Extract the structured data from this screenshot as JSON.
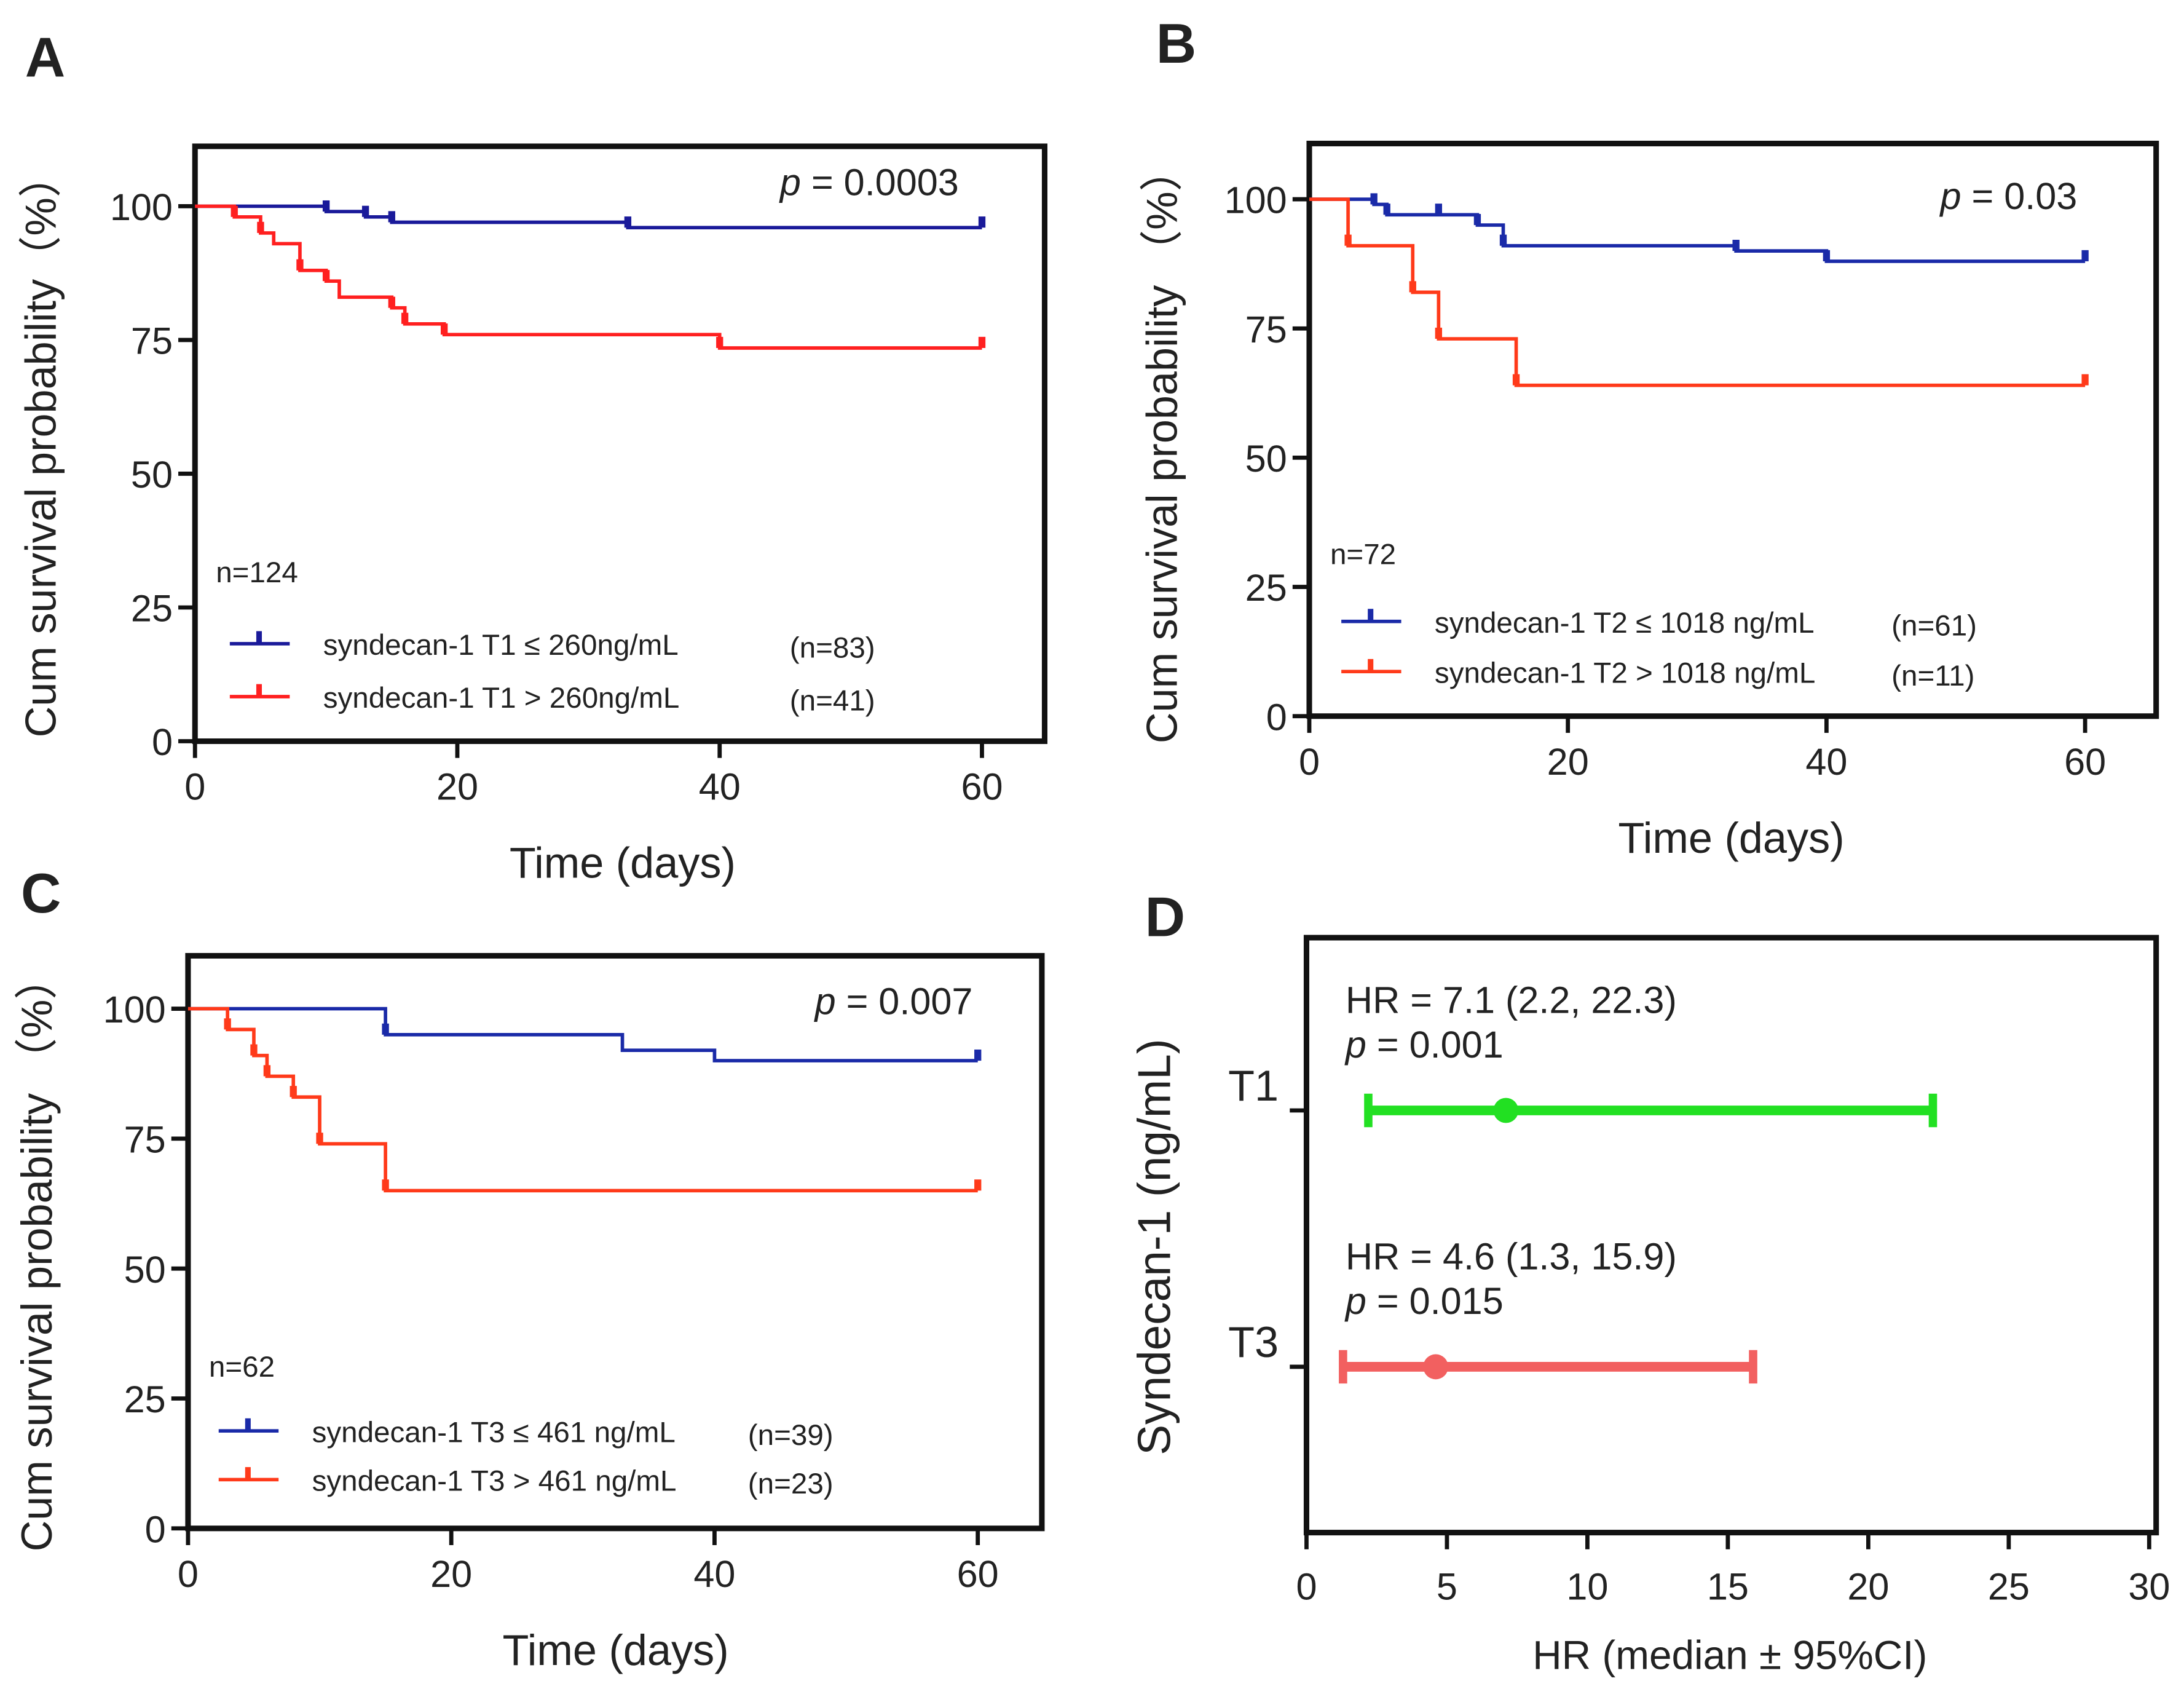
{
  "chart_data": [
    {
      "panel": "A",
      "type": "line",
      "xlabel": "Time (days)",
      "ylabel": "Cum survival probability（%）",
      "xlim": [
        0,
        65
      ],
      "ylim": [
        0,
        110
      ],
      "xticks": [
        0,
        20,
        40,
        60
      ],
      "yticks": [
        0,
        25,
        50,
        75,
        100
      ],
      "annotation_p": "= 0.0003",
      "n_label": "n=124",
      "series": [
        {
          "name": "syndecan-1 T1 ≤ 260ng/mL",
          "n": "(n=83)",
          "color": "#1a1a9a",
          "steps": [
            [
              0,
              100
            ],
            [
              10,
              99
            ],
            [
              13,
              98
            ],
            [
              15,
              97
            ],
            [
              33,
              96
            ],
            [
              60,
              96
            ]
          ],
          "censored": [
            10,
            13,
            15,
            33,
            60
          ]
        },
        {
          "name": "syndecan-1 T1 > 260ng/mL",
          "n": "(n=41)",
          "color": "#ff2020",
          "steps": [
            [
              0,
              100
            ],
            [
              3,
              98
            ],
            [
              5,
              95
            ],
            [
              6,
              93
            ],
            [
              8,
              88
            ],
            [
              10,
              86
            ],
            [
              11,
              83
            ],
            [
              15,
              81
            ],
            [
              16,
              78
            ],
            [
              19,
              76
            ],
            [
              40,
              73.5
            ],
            [
              60,
              73.5
            ]
          ],
          "censored": [
            3,
            5,
            8,
            10,
            15,
            16,
            19,
            40,
            60
          ]
        }
      ]
    },
    {
      "panel": "B",
      "type": "line",
      "xlabel": "Time (days)",
      "ylabel": "Cum survival probability （%）",
      "xlim": [
        0,
        62
      ],
      "ylim": [
        0,
        110
      ],
      "xticks": [
        0,
        20,
        40,
        60
      ],
      "yticks": [
        0,
        25,
        50,
        75,
        100
      ],
      "annotation_p": "= 0.03",
      "n_label": "n=72",
      "series": [
        {
          "name": "syndecan-1 T2 ≤ 1018 ng/mL",
          "n": "(n=61)",
          "color": "#1a2aa8",
          "steps": [
            [
              0,
              100
            ],
            [
              5,
              99
            ],
            [
              6,
              97
            ],
            [
              10,
              97
            ],
            [
              13,
              95
            ],
            [
              15,
              91
            ],
            [
              33,
              90
            ],
            [
              40,
              88
            ],
            [
              60,
              88
            ]
          ],
          "censored": [
            5,
            6,
            10,
            13,
            15,
            33,
            40,
            60
          ]
        },
        {
          "name": "syndecan-1 T2 > 1018 ng/mL",
          "n": "(n=11)",
          "color": "#ff3a1a",
          "steps": [
            [
              0,
              100
            ],
            [
              3,
              91
            ],
            [
              8,
              82
            ],
            [
              10,
              73
            ],
            [
              16,
              64
            ],
            [
              60,
              64
            ]
          ],
          "censored": [
            3,
            8,
            10,
            16,
            60
          ]
        }
      ]
    },
    {
      "panel": "C",
      "type": "line",
      "xlabel": "Time (days)",
      "ylabel": "Cum survival probability （%）",
      "xlim": [
        0,
        65
      ],
      "ylim": [
        0,
        110
      ],
      "xticks": [
        0,
        20,
        40,
        60
      ],
      "yticks": [
        0,
        25,
        50,
        75,
        100
      ],
      "annotation_p": "= 0.007",
      "n_label": "n=62",
      "series": [
        {
          "name": "syndecan-1 T3 ≤ 461 ng/mL",
          "n": "(n=39)",
          "color": "#1a2aa8",
          "steps": [
            [
              0,
              100
            ],
            [
              15,
              95
            ],
            [
              33,
              92
            ],
            [
              40,
              90
            ],
            [
              60,
              90
            ]
          ],
          "censored": [
            15,
            60
          ]
        },
        {
          "name": "syndecan-1 T3 > 461 ng/mL",
          "n": "(n=23)",
          "color": "#ff3a1a",
          "steps": [
            [
              0,
              100
            ],
            [
              3,
              96
            ],
            [
              5,
              91
            ],
            [
              6,
              87
            ],
            [
              8,
              83
            ],
            [
              10,
              74
            ],
            [
              15,
              65
            ],
            [
              60,
              65
            ]
          ],
          "censored": [
            3,
            5,
            6,
            8,
            10,
            15,
            60
          ]
        }
      ]
    },
    {
      "panel": "D",
      "type": "forest",
      "xlabel": "HR (median ± 95%CI)",
      "ylabel": "Syndecan-1 (ng/mL)",
      "xlim": [
        0,
        30
      ],
      "xticks": [
        0,
        5,
        10,
        15,
        20,
        25,
        30
      ],
      "rows": [
        {
          "label": "T1",
          "hr": 7.1,
          "lo": 2.2,
          "hi": 22.3,
          "hr_text": "HR = 7.1 (2.2, 22.3)",
          "p_text": "= 0.001",
          "color": "#22e022"
        },
        {
          "label": "T3",
          "hr": 4.6,
          "lo": 1.3,
          "hi": 15.9,
          "hr_text": "HR = 4.6 (1.3, 15.9)",
          "p_text": "= 0.015",
          "color": "#f26060"
        }
      ]
    }
  ],
  "p_symbol": "p"
}
